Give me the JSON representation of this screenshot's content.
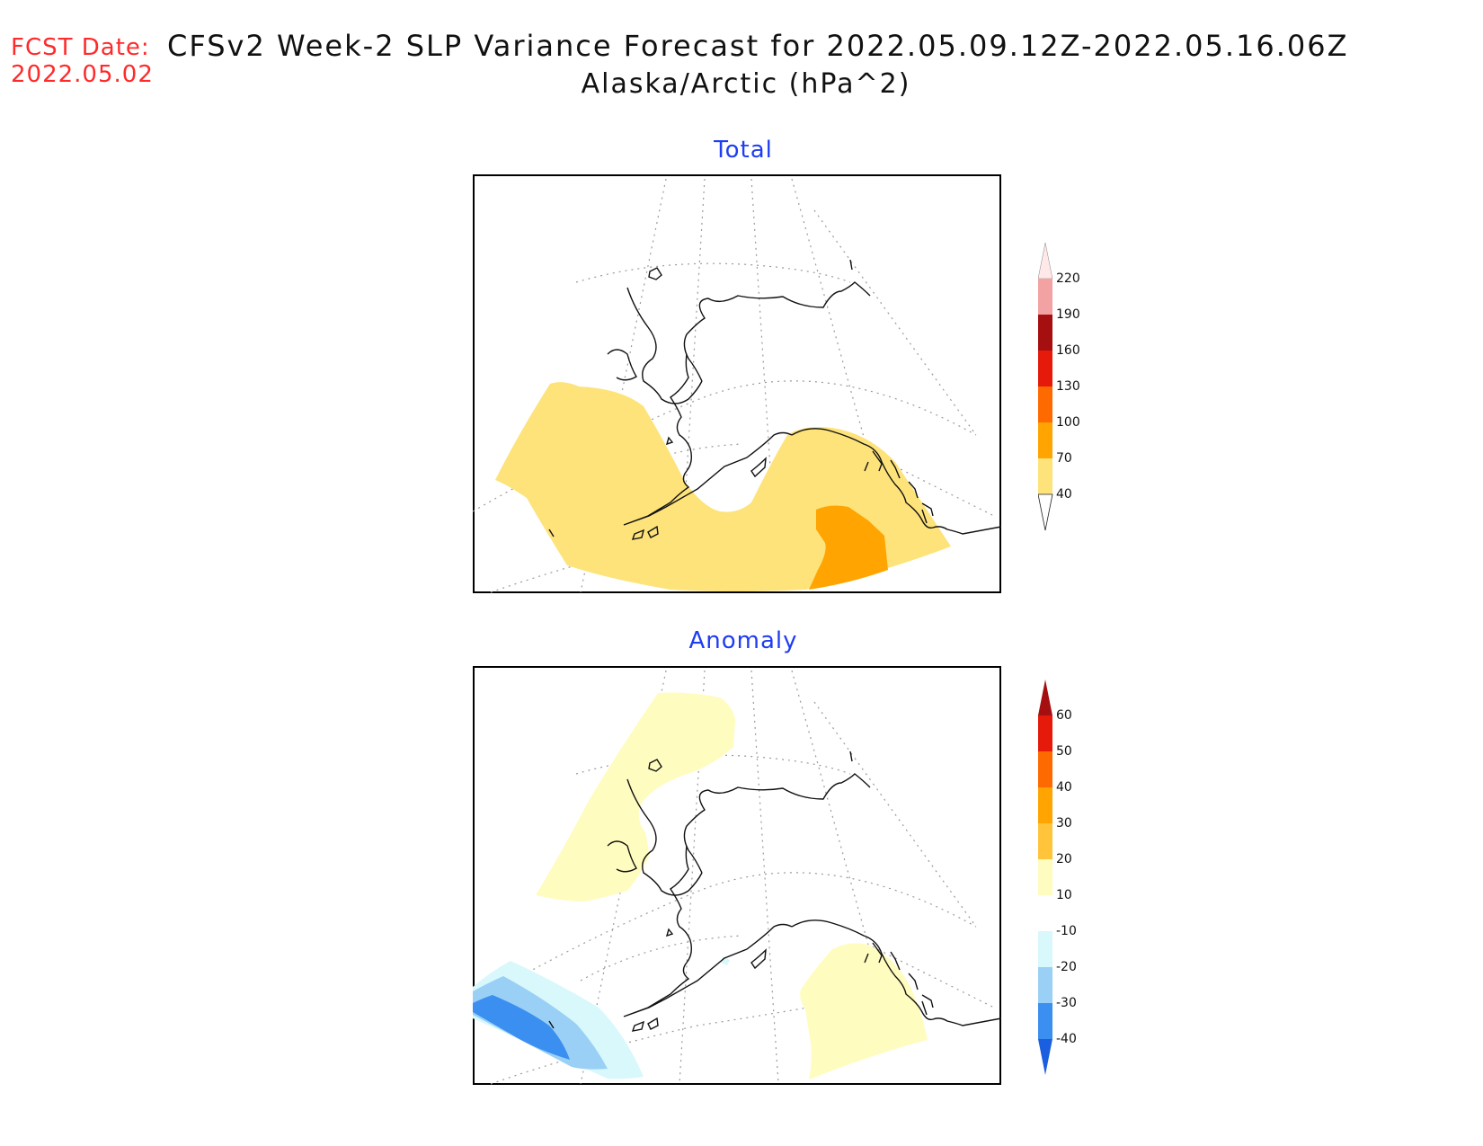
{
  "header": {
    "fcst_label": "FCST Date:",
    "fcst_date": "2022.05.02",
    "title": "CFSv2 Week-2 SLP Variance Forecast for 2022.05.09.12Z-2022.05.16.06Z",
    "subtitle": "Alaska/Arctic (hPa^2)"
  },
  "panels": {
    "total": {
      "title": "Total",
      "legend": {
        "labels": [
          "220",
          "190",
          "160",
          "130",
          "100",
          "70",
          "40"
        ],
        "colors": [
          "#ffe8e8",
          "#f2a2a2",
          "#a50f0f",
          "#e51a0a",
          "#ff6a00",
          "#ffa400",
          "#fde37a"
        ]
      }
    },
    "anomaly": {
      "title": "Anomaly",
      "legend": {
        "labels": [
          "60",
          "50",
          "40",
          "30",
          "20",
          "10",
          "-10",
          "-20",
          "-30",
          "-40"
        ],
        "colors": [
          "#a50f0f",
          "#e51a0a",
          "#ff6a00",
          "#ffa400",
          "#ffc43a",
          "#fffcc0",
          "#ffffff",
          "#d8f8fb",
          "#9ad0f5",
          "#3b8ff0",
          "#1a5fe0"
        ]
      }
    }
  }
}
